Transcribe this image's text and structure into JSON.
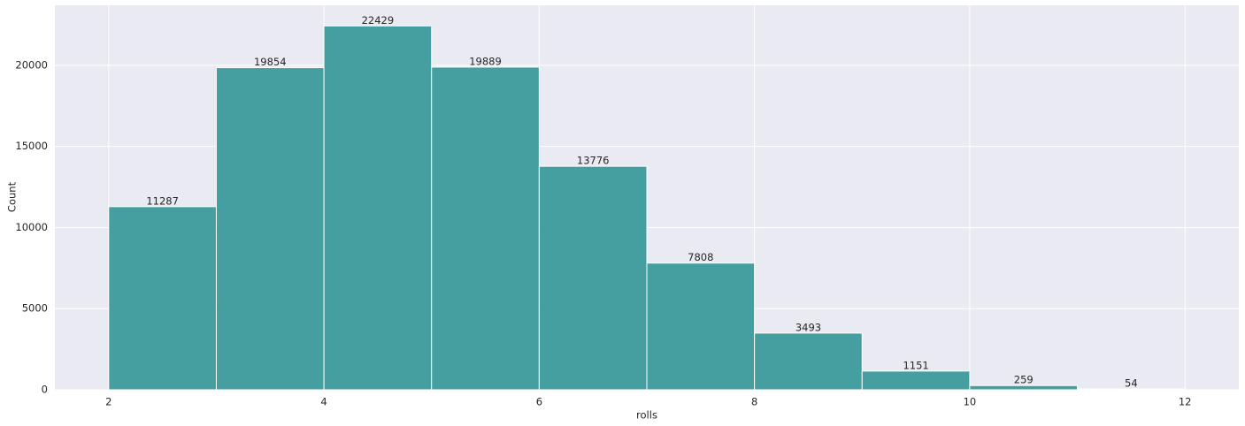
{
  "chart_data": {
    "type": "histogram",
    "x_label": "rolls",
    "y_label": "Count",
    "bins": [
      2,
      3,
      4,
      5,
      6,
      7,
      8,
      9,
      10,
      11,
      12
    ],
    "counts": [
      11287,
      19854,
      22429,
      19889,
      13776,
      7808,
      3493,
      1151,
      259,
      54
    ],
    "color": "#3c9a9a",
    "xlim": [
      1.5,
      12.5
    ],
    "xticks": [
      2,
      4,
      6,
      8,
      10,
      12
    ],
    "ylim": [
      0,
      23700
    ],
    "yticks": [
      0,
      5000,
      10000,
      15000,
      20000
    ],
    "grid": true
  }
}
